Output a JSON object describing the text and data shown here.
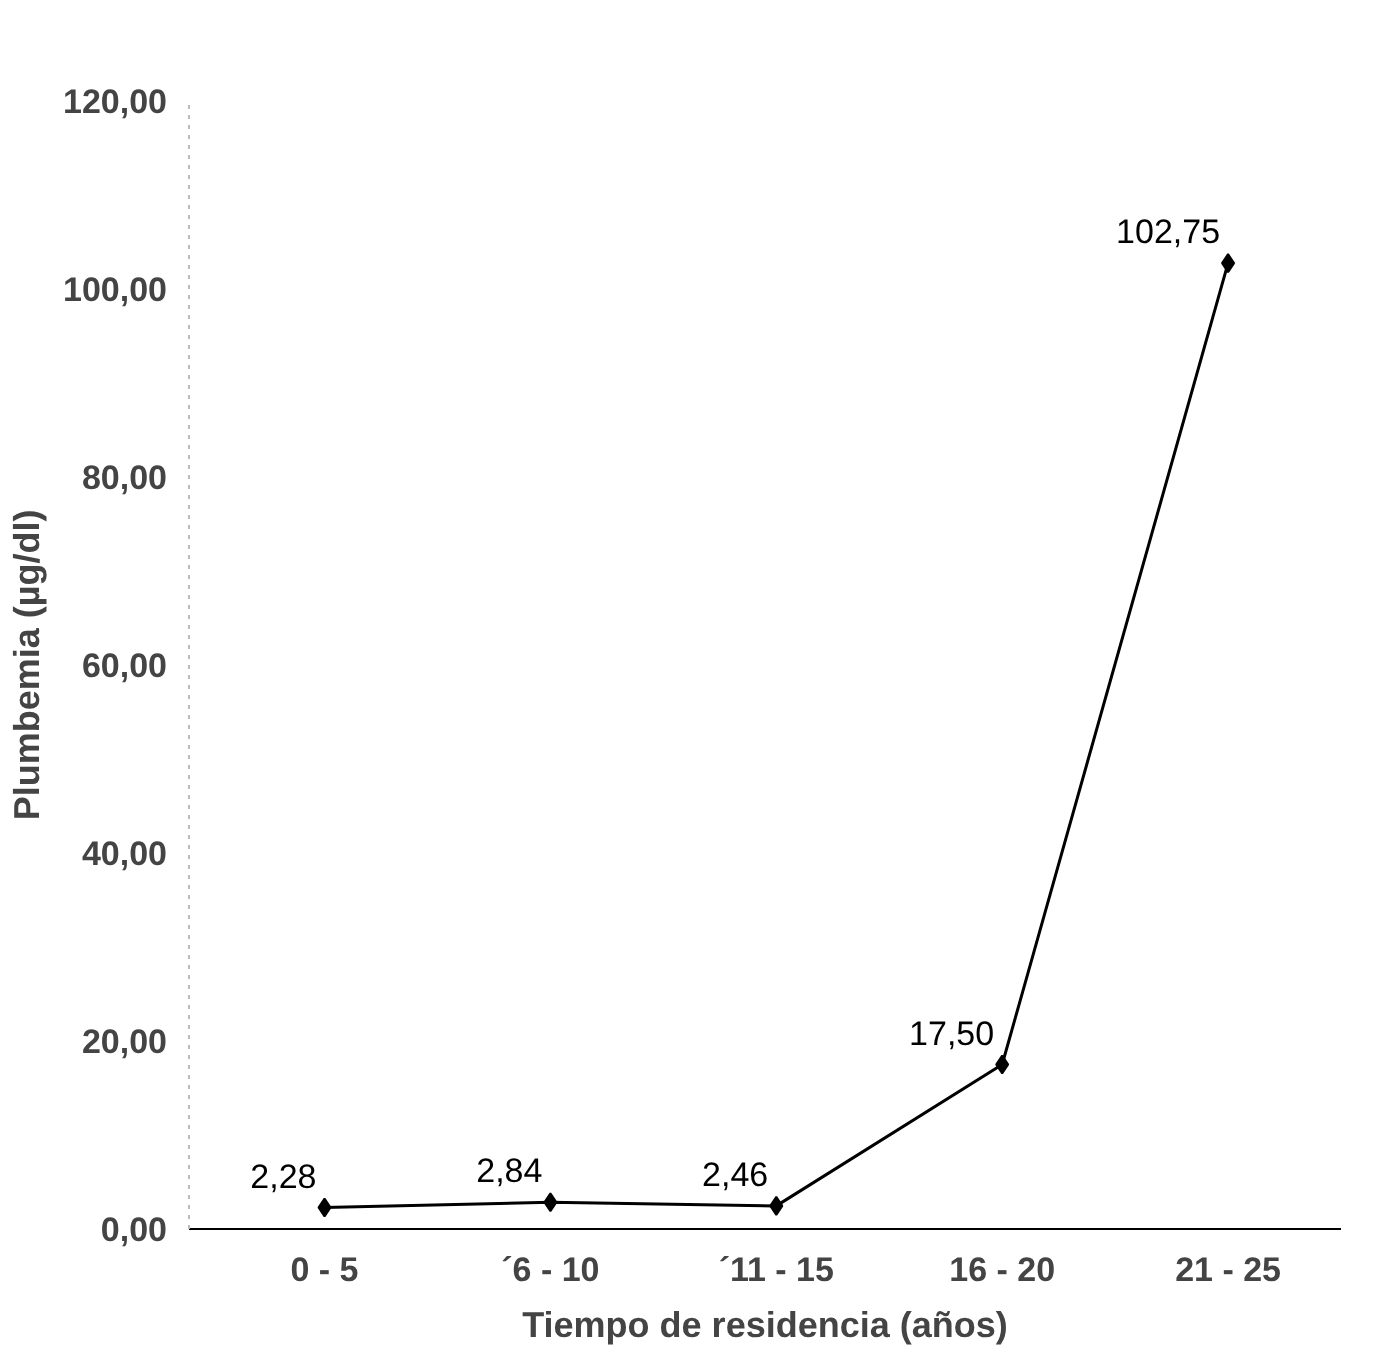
{
  "chart_data": {
    "type": "line",
    "xlabel": "Tiempo de residencia (años)",
    "ylabel": "Plumbemia (µg/dl)",
    "categories": [
      "0 - 5",
      "´6 - 10",
      "´11 - 15",
      "16 - 20",
      "21 - 25"
    ],
    "series": [
      {
        "color": "#000000",
        "values": [
          2.28,
          2.84,
          2.46,
          17.5,
          102.75
        ],
        "value_labels": [
          "2,28",
          "2,84",
          "2,46",
          "17,50",
          "102,75"
        ]
      }
    ],
    "ylim": [
      0,
      120
    ],
    "yticks": [
      {
        "value": 0,
        "label": "0,00"
      },
      {
        "value": 20,
        "label": "20,00"
      },
      {
        "value": 40,
        "label": "40,00"
      },
      {
        "value": 60,
        "label": "60,00"
      },
      {
        "value": 80,
        "label": "80,00"
      },
      {
        "value": 100,
        "label": "100,00"
      },
      {
        "value": 120,
        "label": "120,00"
      }
    ],
    "grid": false,
    "marker": "diamond",
    "line_style": "solid"
  }
}
